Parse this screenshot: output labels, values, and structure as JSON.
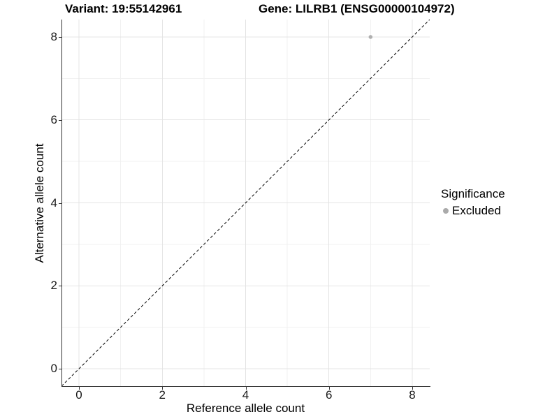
{
  "figure": {
    "titles": {
      "variant": "Variant: 19:55142961",
      "gene": "Gene: LILRB1 (ENSG00000104972)"
    }
  },
  "legend": {
    "title": "Significance",
    "entries": [
      {
        "label": "Excluded",
        "color": "#aaaaaa"
      }
    ]
  },
  "chart_data": {
    "type": "scatter",
    "title": "Variant: 19:55142961   Gene: LILRB1 (ENSG00000104972)",
    "xlabel": "Reference allele count",
    "ylabel": "Alternative allele count",
    "xlim": [
      -0.42,
      8.42
    ],
    "ylim": [
      -0.42,
      8.42
    ],
    "x_ticks": [
      0,
      2,
      4,
      6,
      8
    ],
    "y_ticks": [
      0,
      2,
      4,
      6,
      8
    ],
    "x_minor_ticks": [
      1,
      3,
      5,
      7
    ],
    "y_minor_ticks": [
      1,
      3,
      5,
      7
    ],
    "grid": "major+minor",
    "legend_position": "right",
    "series": [
      {
        "name": "Excluded",
        "color": "#b0b0b0",
        "marker": "circle",
        "points": [
          {
            "x": 7,
            "y": 8
          }
        ]
      }
    ],
    "reference_line": {
      "type": "identity (y = x)",
      "style": "dashed",
      "color": "#000000"
    }
  },
  "style": {
    "major_grid": "#e4e4e4",
    "minor_grid": "#f1f1f1",
    "axis_line": "#333333",
    "background": "#ffffff"
  }
}
